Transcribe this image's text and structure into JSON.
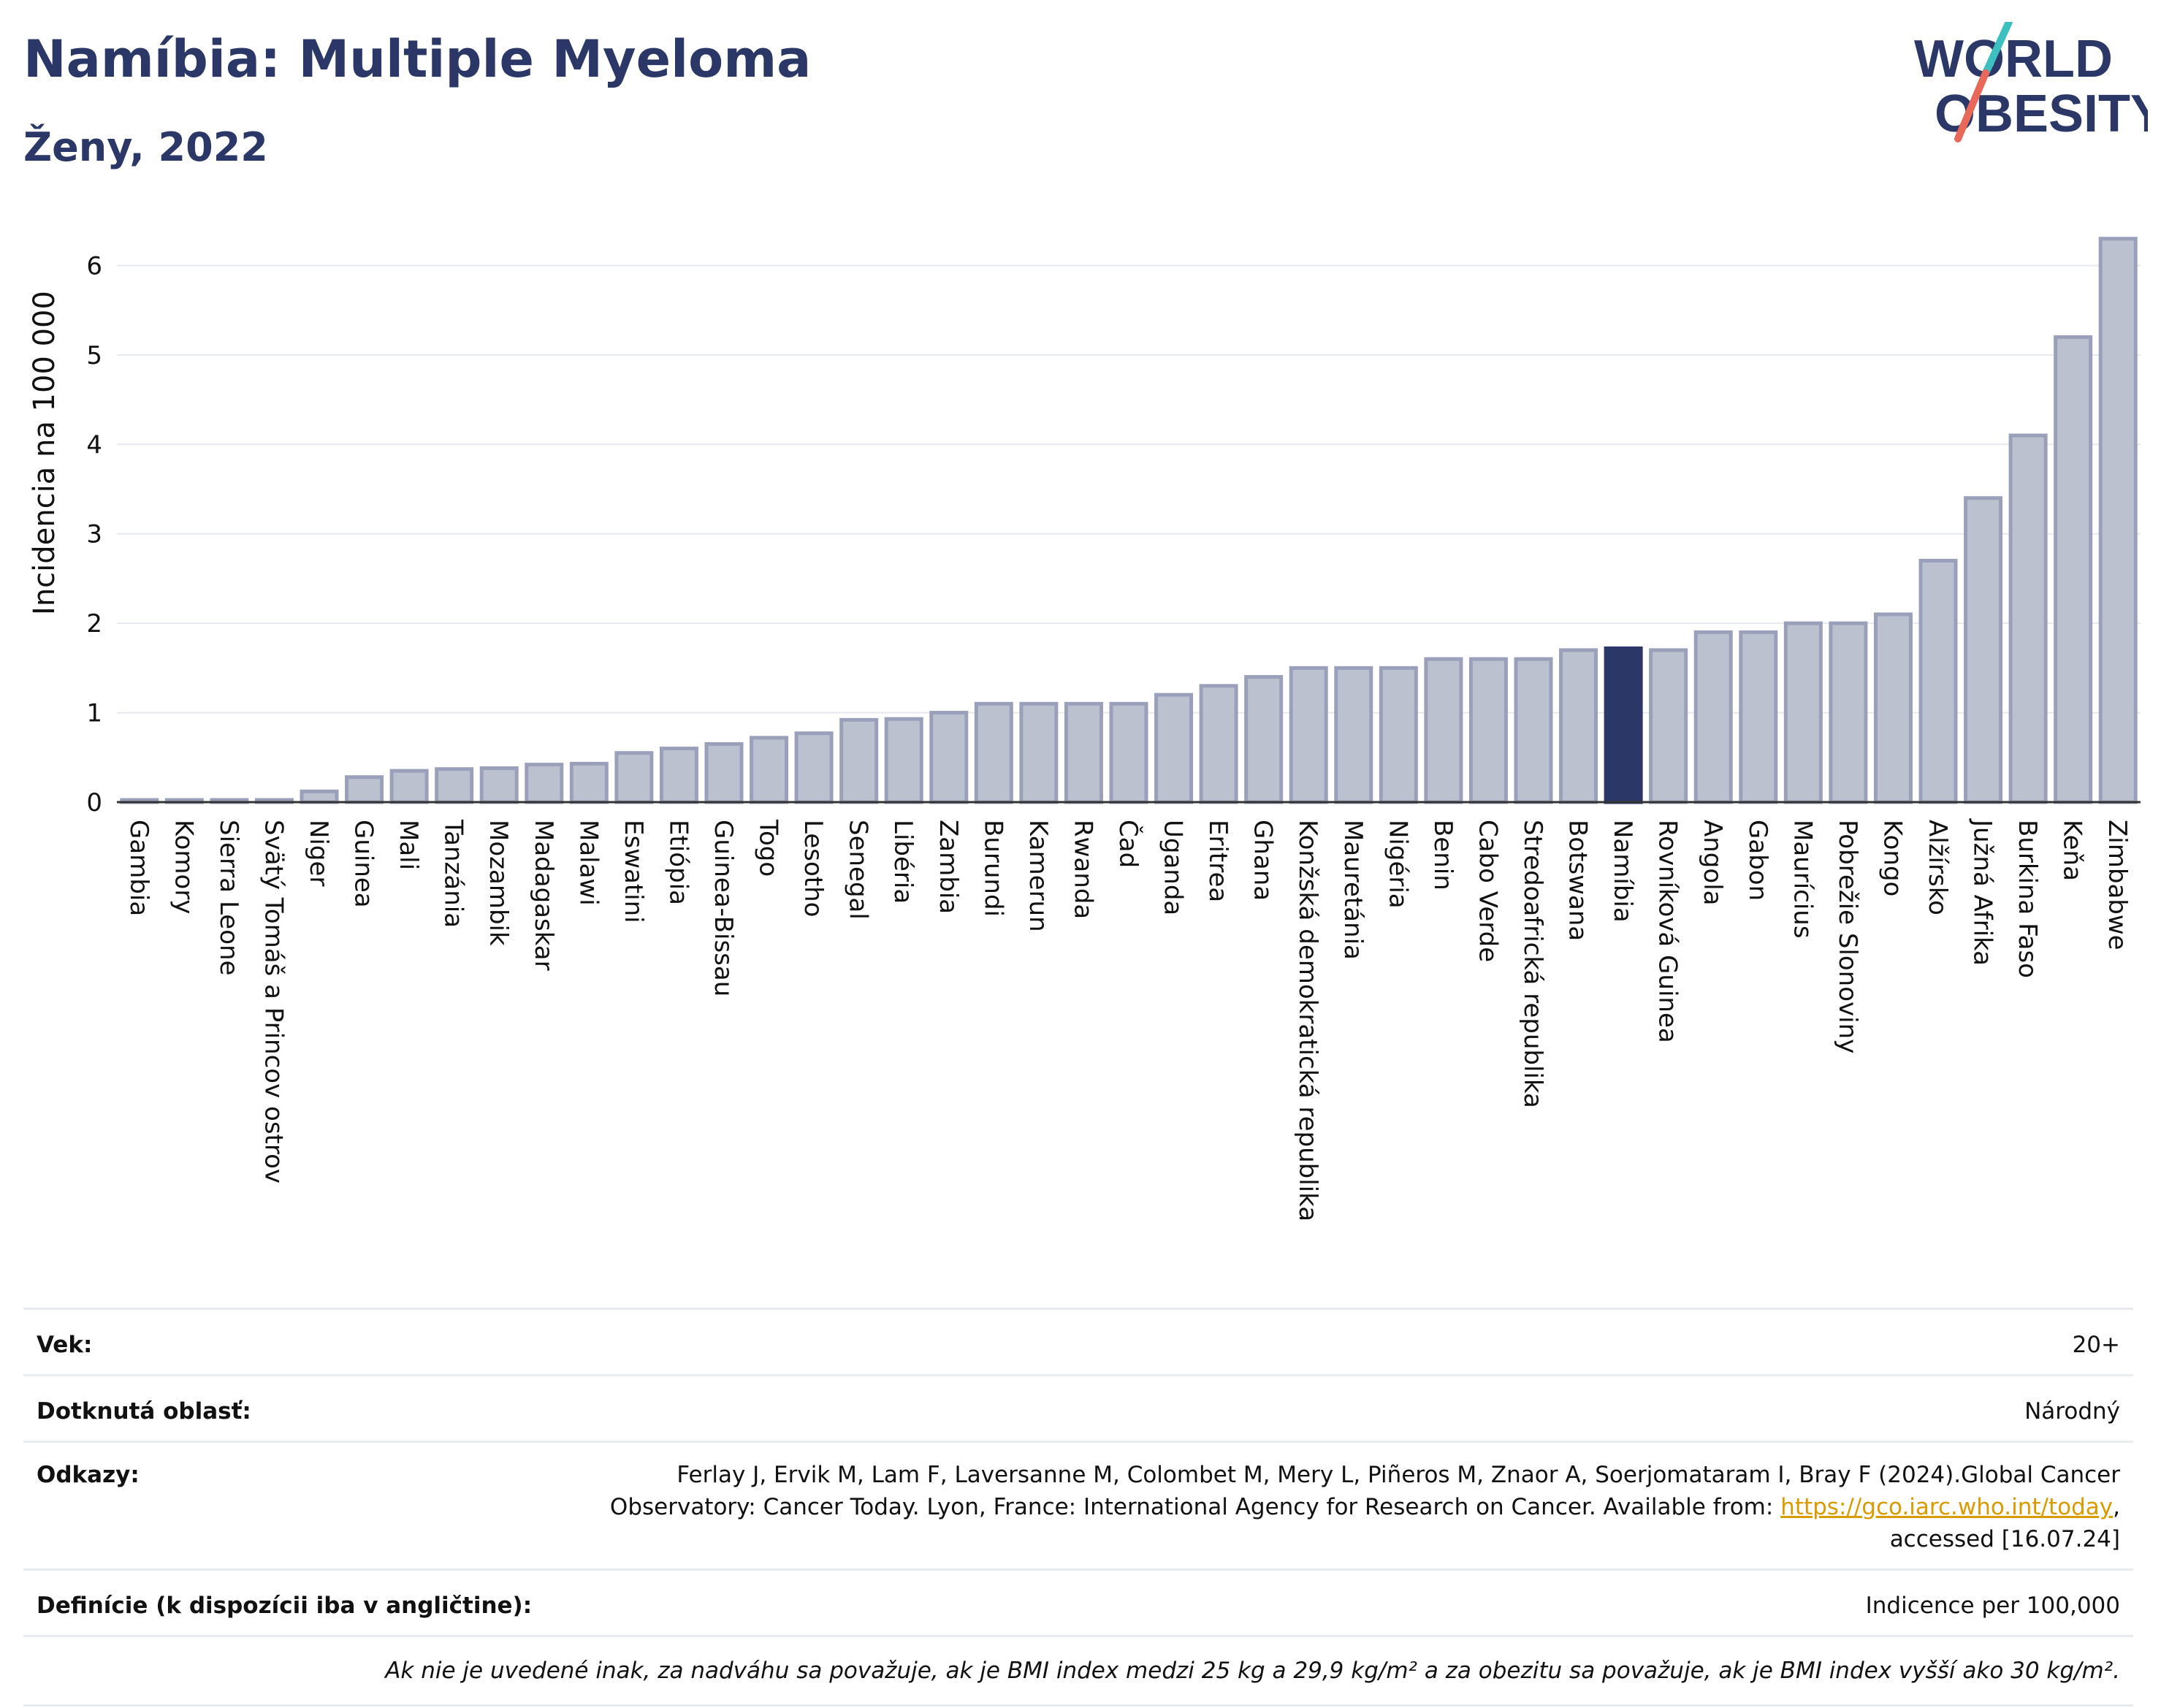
{
  "header": {
    "title": "Namíbia: Multiple Myeloma",
    "subtitle": "Ženy, 2022"
  },
  "logo": {
    "line1": "WORLD",
    "line2": "OBESITY",
    "text_color": "#2b3766",
    "slash_color_top": "#3bbfbf",
    "slash_color_bottom": "#e8685a"
  },
  "colors": {
    "bar_fill": "#bcc1d0",
    "bar_stroke": "#9aa0ba",
    "highlight_fill": "#2b3766",
    "grid": "#e6e9ef",
    "axis": "#333333"
  },
  "chart_data": {
    "type": "bar",
    "ylabel": "Incidencia na 100 000",
    "ylim": [
      0,
      6.6
    ],
    "yticks": [
      0,
      1,
      2,
      3,
      4,
      5,
      6
    ],
    "grid": true,
    "highlight": "Namíbia",
    "categories": [
      "Gambia",
      "Komory",
      "Sierra Leone",
      "Svätý Tomáš a Princov ostrov",
      "Niger",
      "Guinea",
      "Mali",
      "Tanzánia",
      "Mozambik",
      "Madagaskar",
      "Malawi",
      "Eswatini",
      "Etiópia",
      "Guinea-Bissau",
      "Togo",
      "Lesotho",
      "Senegal",
      "Libéria",
      "Zambia",
      "Burundi",
      "Kamerun",
      "Rwanda",
      "Čad",
      "Uganda",
      "Eritrea",
      "Ghana",
      "Konžská demokratická republika",
      "Mauretánia",
      "Nigéria",
      "Benin",
      "Cabo Verde",
      "Stredoafrická republika",
      "Botswana",
      "Namíbia",
      "Rovníková Guinea",
      "Angola",
      "Gabon",
      "Maurícius",
      "Pobrežie Slonoviny",
      "Kongo",
      "Alžírsko",
      "Južná Afrika",
      "Burkina Faso",
      "Keňa",
      "Zimbabwe"
    ],
    "values": [
      0.02,
      0.02,
      0.02,
      0.02,
      0.12,
      0.28,
      0.35,
      0.37,
      0.38,
      0.42,
      0.43,
      0.55,
      0.6,
      0.65,
      0.72,
      0.77,
      0.92,
      0.93,
      1.0,
      1.1,
      1.1,
      1.1,
      1.1,
      1.2,
      1.3,
      1.4,
      1.5,
      1.5,
      1.5,
      1.6,
      1.6,
      1.6,
      1.7,
      1.72,
      1.7,
      1.9,
      1.9,
      2.0,
      2.0,
      2.1,
      2.7,
      3.4,
      4.1,
      5.2,
      6.3
    ]
  },
  "info": {
    "age_label": "Vek:",
    "age_value": "20+",
    "area_label": "Dotknutá oblasť:",
    "area_value": "Národný",
    "ref_label": "Odkazy:",
    "ref_line1": "Ferlay J, Ervik M, Lam F, Laversanne M, Colombet M, Mery L, Piñeros M, Znaor A, Soerjomataram I, Bray F (2024).Global Cancer",
    "ref_line2": "Observatory: Cancer Today. Lyon, France: International Agency for Research on Cancer. Available from:",
    "ref_link": "https://gco.iarc.who.int/today",
    "ref_line2_end": ",",
    "ref_line3": "accessed [16.07.24]",
    "def_label": "Definície (k dispozícii iba v angličtine):",
    "def_value": "Indicence per 100,000",
    "note": "Ak nie je uvedené inak, za nadváhu sa považuje, ak je BMI index medzi 25 kg a 29,9 kg/m² a za obezitu sa považuje, ak je BMI index vyšší ako 30 kg/m²."
  }
}
